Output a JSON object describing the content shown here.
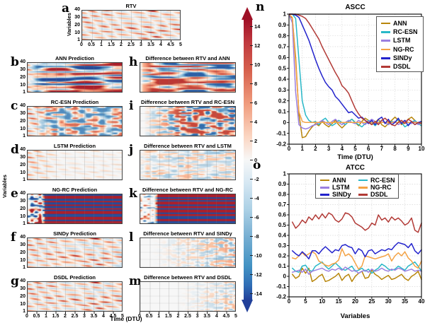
{
  "heatmaps": {
    "ylabel": "Variables",
    "xlabel": "Time (DTU)",
    "x_ticks": [
      "0",
      "0.5",
      "1",
      "1.5",
      "2",
      "2.5",
      "3",
      "3.5",
      "4",
      "4.5",
      "5"
    ],
    "y_ticks": [
      "40",
      "30",
      "20",
      "10",
      "1"
    ],
    "x_range_dtu": [
      0,
      5
    ],
    "variables_range": [
      1,
      40
    ],
    "panels": [
      {
        "letter": "a",
        "title": "RTV",
        "pattern": "rtv"
      },
      {
        "letter": "b",
        "title": "ANN Prediction",
        "pattern": "ann"
      },
      {
        "letter": "c",
        "title": "RC-ESN Prediction",
        "pattern": "rcesn"
      },
      {
        "letter": "d",
        "title": "LSTM Prediction",
        "pattern": "lstm"
      },
      {
        "letter": "e",
        "title": "NG-RC Prediction",
        "pattern": "ngrc"
      },
      {
        "letter": "f",
        "title": "SINDy Prediction",
        "pattern": "sindy"
      },
      {
        "letter": "g",
        "title": "DSDL Prediction",
        "pattern": "dsdl"
      },
      {
        "letter": "h",
        "title": "Difference between RTV and ANN",
        "pattern": "diff_ann"
      },
      {
        "letter": "i",
        "title": "Difference between RTV and RC-ESN",
        "pattern": "diff_rcesn"
      },
      {
        "letter": "j",
        "title": "Difference between RTV and LSTM",
        "pattern": "diff_lstm"
      },
      {
        "letter": "k",
        "title": "Difference between RTV and NG-RC",
        "pattern": "diff_ngrc"
      },
      {
        "letter": "l",
        "title": "Difference between RTV and SINDy",
        "pattern": "diff_sindy"
      },
      {
        "letter": "m",
        "title": "Difference between RTV and DSDL",
        "pattern": "diff_dsdl"
      }
    ]
  },
  "colorbar": {
    "ticks": [
      "14",
      "12",
      "10",
      "8",
      "6",
      "4",
      "2",
      "0",
      "-2",
      "-4",
      "-6",
      "-8",
      "-10",
      "-12",
      "-14"
    ],
    "max_color": "#9e1026",
    "min_color": "#21409a",
    "mid_color": "#f7f7f7"
  },
  "palette": {
    "series": {
      "ANN": "#b8860b",
      "RC-ESN": "#29b8c8",
      "LSTM": "#9b7fe0",
      "NG-RC": "#f4a244",
      "SINDy": "#2323cc",
      "DSDL": "#b23a36"
    }
  },
  "chart_data": [
    {
      "id": "ascc",
      "letter": "n",
      "type": "line",
      "title": "ASCC",
      "xlabel": "Time (DTU)",
      "xlim": [
        0,
        10
      ],
      "ylim": [
        -0.2,
        1
      ],
      "x_start": 0,
      "x_step": 0.25,
      "x_ticks": [
        0,
        1,
        2,
        3,
        4,
        5,
        6,
        7,
        8,
        9,
        10
      ],
      "x_tick_labels": [
        "0",
        "1",
        "2",
        "3",
        "4",
        "5",
        "6",
        "7",
        "8",
        "9",
        "10"
      ],
      "y_ticks": [
        1,
        0.9,
        0.8,
        0.7,
        0.6,
        0.5,
        0.4,
        0.3,
        0.2,
        0.1,
        0,
        -0.1,
        -0.2
      ],
      "y_tick_labels": [
        "1",
        "0.9",
        "0.8",
        "0.7",
        "0.6",
        "0.5",
        "0.4",
        "0.3",
        "0.2",
        "0.1",
        "0",
        "-0.1",
        "-0.2"
      ],
      "grid": true,
      "legend_position": "top-right",
      "series": [
        {
          "name": "ANN",
          "values": [
            1,
            0.96,
            0.6,
            0.08,
            -0.14,
            -0.13,
            -0.08,
            -0.04,
            -0.01,
            -0.03,
            0.01,
            -0.02,
            -0.04,
            -0.01,
            0.02,
            -0.02,
            -0.05,
            -0.02,
            0.01,
            0.03,
            0,
            -0.03,
            0.01,
            0.04,
            0.02,
            -0.02,
            0,
            0.03,
            -0.02,
            -0.04,
            -0.01,
            0.02,
            0.05,
            0.02,
            -0.02,
            0,
            0.03,
            0.05,
            0.02,
            -0.01,
            0.01
          ]
        },
        {
          "name": "RC-ESN",
          "values": [
            1,
            1,
            0.96,
            0.58,
            0.2,
            0.07,
            0.02,
            0,
            0.01,
            -0.02,
            0.02,
            0.04,
            0,
            -0.03,
            -0.01,
            0.02,
            0,
            -0.02,
            0.01,
            0.03,
            0,
            -0.02,
            -0.04,
            -0.01,
            0.02,
            0,
            -0.03,
            0,
            0.02,
            0,
            -0.02,
            0.01,
            0,
            0.03,
            0,
            -0.04,
            -0.02,
            0,
            0.02,
            -0.01,
            -0.03
          ]
        },
        {
          "name": "LSTM",
          "values": [
            1,
            0.92,
            0.28,
            -0.02,
            -0.05,
            -0.06,
            -0.05,
            -0.03,
            -0.02,
            0,
            0.02,
            0,
            -0.02,
            0.01,
            0.03,
            0,
            -0.02,
            0,
            0.02,
            0,
            -0.01,
            0.02,
            0,
            -0.02,
            0.01,
            0.03,
            0.01,
            -0.01,
            0.02,
            0,
            -0.02,
            0,
            0.01,
            -0.02,
            0,
            0.02,
            0,
            -0.01,
            0.01,
            -0.02,
            0
          ]
        },
        {
          "name": "NG-RC",
          "values": [
            1,
            0.97,
            0.55,
            0.1,
            0.01,
            0,
            0,
            0,
            0,
            0,
            0,
            0,
            0,
            0,
            0,
            0,
            0,
            0,
            0,
            0,
            0,
            0,
            0,
            0,
            0,
            0,
            0,
            0,
            0,
            0,
            0,
            0,
            0,
            0,
            0,
            0,
            0,
            0,
            0,
            0,
            0
          ]
        },
        {
          "name": "SINDy",
          "values": [
            1,
            1,
            0.99,
            0.97,
            0.9,
            0.83,
            0.76,
            0.67,
            0.58,
            0.5,
            0.43,
            0.37,
            0.33,
            0.3,
            0.24,
            0.21,
            0.17,
            0.13,
            0.09,
            0.1,
            0.07,
            0.04,
            0.05,
            0.02,
            -0.01,
            0.02,
            -0.02,
            0.03,
            0.05,
            -0.01,
            0.03,
            -0.02,
            0,
            0.04,
            -0.01,
            0.02,
            -0.03,
            0.01,
            -0.02,
            0,
            0.01
          ]
        },
        {
          "name": "DSDL",
          "values": [
            1,
            1,
            1,
            0.99,
            0.98,
            0.96,
            0.92,
            0.87,
            0.82,
            0.77,
            0.7,
            0.64,
            0.58,
            0.52,
            0.46,
            0.41,
            0.34,
            0.31,
            0.27,
            0.2,
            0.13,
            0.08,
            0.04,
            0.02,
            0,
            -0.02,
            0.01,
            -0.02,
            0.02,
            0.04,
            0.01,
            -0.02,
            -0.03,
            0,
            0.02,
            -0.01,
            0.03,
            0.01,
            -0.02,
            0,
            -0.01
          ]
        }
      ]
    },
    {
      "id": "atcc",
      "letter": "o",
      "type": "line",
      "title": "ATCC",
      "xlabel": "Variables",
      "xlim": [
        0,
        40
      ],
      "ylim": [
        -0.2,
        1
      ],
      "x_start": 1,
      "x_step": 1,
      "x_ticks": [
        0,
        5,
        10,
        15,
        20,
        25,
        30,
        35,
        40
      ],
      "x_tick_labels": [
        "0",
        "5",
        "10",
        "15",
        "20",
        "25",
        "30",
        "35",
        "40"
      ],
      "y_ticks": [
        1,
        0.9,
        0.8,
        0.7,
        0.6,
        0.5,
        0.4,
        0.3,
        0.2,
        0.1,
        0,
        -0.1,
        -0.2
      ],
      "y_tick_labels": [
        "1",
        "0.9",
        "0.8",
        "0.7",
        "0.6",
        "0.5",
        "0.4",
        "0.3",
        "0.2",
        "0.1",
        "0",
        "-0.1",
        "-0.2"
      ],
      "grid": true,
      "legend_position": "top-center",
      "series": [
        {
          "name": "ANN",
          "values": [
            0.02,
            -0.02,
            0,
            0.08,
            0.03,
            0.08,
            -0.05,
            -0.03,
            0,
            0.02,
            -0.05,
            -0.04,
            -0.02,
            0,
            0.03,
            -0.04,
            0,
            0.02,
            -0.05,
            0,
            0.03,
            0.05,
            -0.02,
            -0.01,
            0.06,
            0.02,
            0,
            -0.03,
            -0.01,
            0.01,
            -0.03,
            -0.02,
            0,
            0.02,
            -0.02,
            -0.04,
            0,
            0.02,
            0.05,
            -0.03
          ]
        },
        {
          "name": "RC-ESN",
          "values": [
            0.08,
            0.05,
            0.04,
            0.1,
            0.11,
            0.06,
            0.05,
            0.1,
            0.12,
            0.14,
            0.1,
            0.07,
            0.1,
            0.13,
            0.1,
            0.07,
            0.06,
            0.08,
            0.1,
            0.05,
            0.06,
            0.08,
            0.05,
            0.07,
            0.03,
            0.06,
            0.08,
            0.12,
            0.1,
            0.07,
            0.06,
            0.07,
            0.1,
            0.08,
            0.06,
            0.1,
            0.12,
            0.14,
            0.1,
            0.05
          ]
        },
        {
          "name": "LSTM",
          "values": [
            0.04,
            0.05,
            0.06,
            0.04,
            0.07,
            0.02,
            0.05,
            0.06,
            0.07,
            0.08,
            0.06,
            0.05,
            0.07,
            0.06,
            0.08,
            0.06,
            0.09,
            0.07,
            0.05,
            0.06,
            0.03,
            0.05,
            0.06,
            0.04,
            0.07,
            0.05,
            0.06,
            0.08,
            0.06,
            0.05,
            0.07,
            0.06,
            0.08,
            0.07,
            0.05,
            0.06,
            0.07,
            0.05,
            0.06,
            0.05
          ]
        },
        {
          "name": "NG-RC",
          "values": [
            0.18,
            0.17,
            0.2,
            0.23,
            0.2,
            0.22,
            0.24,
            0.22,
            0.15,
            0.13,
            0.11,
            0.1,
            0.12,
            0.13,
            0.16,
            0.27,
            0.2,
            0.22,
            0.19,
            0.13,
            0.07,
            0.1,
            0.2,
            0.19,
            0.18,
            0.17,
            0.18,
            0.19,
            0.2,
            0.22,
            0.15,
            0.2,
            0.23,
            0.2,
            0.24,
            0.18,
            0.15,
            0.1,
            0.08,
            0.15
          ]
        },
        {
          "name": "SINDy",
          "values": [
            0.25,
            0.22,
            0.2,
            0.24,
            0.21,
            0.17,
            0.25,
            0.25,
            0.22,
            0.26,
            0.29,
            0.26,
            0.23,
            0.26,
            0.25,
            0.3,
            0.31,
            0.29,
            0.28,
            0.22,
            0.27,
            0.25,
            0.19,
            0.25,
            0.26,
            0.22,
            0.24,
            0.26,
            0.25,
            0.27,
            0.26,
            0.3,
            0.33,
            0.32,
            0.31,
            0.28,
            0.32,
            0.25,
            0.22,
            0.26
          ]
        },
        {
          "name": "DSDL",
          "values": [
            0.53,
            0.47,
            0.5,
            0.55,
            0.52,
            0.58,
            0.55,
            0.6,
            0.56,
            0.61,
            0.57,
            0.62,
            0.6,
            0.55,
            0.53,
            0.56,
            0.62,
            0.61,
            0.58,
            0.52,
            0.5,
            0.48,
            0.45,
            0.47,
            0.52,
            0.5,
            0.6,
            0.55,
            0.57,
            0.53,
            0.58,
            0.55,
            0.57,
            0.54,
            0.5,
            0.52,
            0.57,
            0.45,
            0.43,
            0.52
          ]
        }
      ]
    }
  ]
}
